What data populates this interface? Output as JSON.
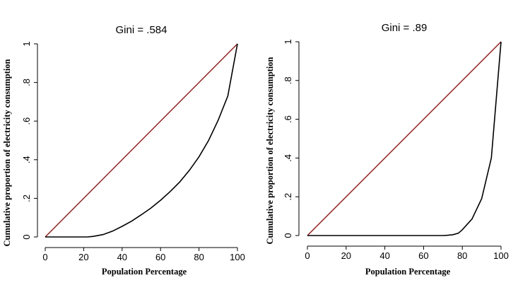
{
  "chart_data": [
    {
      "type": "line",
      "title": "Gini = .584",
      "xlabel": "Population Percentage",
      "ylabel": "Cumulative proportion of electricity consumption",
      "xlim": [
        0,
        100
      ],
      "ylim": [
        0,
        1
      ],
      "x_ticks": [
        "0",
        "20",
        "40",
        "60",
        "80",
        "100"
      ],
      "y_ticks": [
        "0",
        ".2",
        ".4",
        ".6",
        ".8",
        "1"
      ],
      "grid": false,
      "series": [
        {
          "color": "#8b1a1a",
          "x": [
            0,
            100
          ],
          "y": [
            0,
            1
          ]
        },
        {
          "color": "#000000",
          "x": [
            0,
            5,
            10,
            15,
            20,
            22,
            25,
            30,
            35,
            40,
            45,
            50,
            55,
            60,
            65,
            70,
            75,
            80,
            85,
            90,
            95,
            100
          ],
          "y": [
            0,
            0,
            0,
            0,
            0,
            0,
            0.003,
            0.012,
            0.03,
            0.055,
            0.082,
            0.115,
            0.15,
            0.19,
            0.235,
            0.285,
            0.345,
            0.415,
            0.5,
            0.605,
            0.73,
            1.0
          ]
        }
      ]
    },
    {
      "type": "line",
      "title": "Gini = .89",
      "xlabel": "Population Percentage",
      "ylabel": "Cumulative proportion of electricity consumption",
      "xlim": [
        0,
        100
      ],
      "ylim": [
        0,
        1
      ],
      "x_ticks": [
        "0",
        "20",
        "40",
        "60",
        "80",
        "100"
      ],
      "y_ticks": [
        "0",
        ".2",
        ".4",
        ".6",
        ".8",
        "1"
      ],
      "grid": false,
      "series": [
        {
          "color": "#8b1a1a",
          "x": [
            0,
            100
          ],
          "y": [
            0,
            1
          ]
        },
        {
          "color": "#000000",
          "x": [
            0,
            10,
            20,
            30,
            40,
            50,
            60,
            70,
            72,
            75,
            78,
            80,
            85,
            90,
            95,
            100
          ],
          "y": [
            0,
            0,
            0,
            0,
            0,
            0,
            0,
            0,
            0.001,
            0.004,
            0.012,
            0.03,
            0.085,
            0.19,
            0.4,
            1.0
          ]
        }
      ]
    }
  ]
}
